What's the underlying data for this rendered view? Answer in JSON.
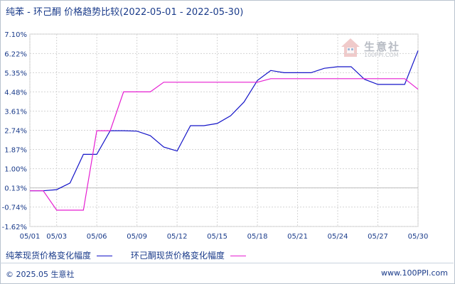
{
  "title": "纯苯 - 环己酮 价格趋势比较(2022-05-01 - 2022-05-30)",
  "footer": {
    "copyright": "© 2025.05 生意社",
    "url": "www.100PPI.com"
  },
  "logo": {
    "text": "生意社",
    "url": "100PPI.COM"
  },
  "colors": {
    "series1": "#1414c8",
    "series2": "#e61fd2",
    "grid": "#d4d4d4",
    "text": "#1a3b8a"
  },
  "chart_data": {
    "type": "line",
    "title": "纯苯 - 环己酮 价格趋势比较(2022-05-01 - 2022-05-30)",
    "x": [
      "05/01",
      "05/02",
      "05/03",
      "05/04",
      "05/05",
      "05/06",
      "05/07",
      "05/08",
      "05/09",
      "05/10",
      "05/11",
      "05/12",
      "05/13",
      "05/14",
      "05/15",
      "05/16",
      "05/17",
      "05/18",
      "05/19",
      "05/20",
      "05/21",
      "05/22",
      "05/23",
      "05/24",
      "05/25",
      "05/26",
      "05/27",
      "05/28",
      "05/29",
      "05/30"
    ],
    "x_tick_labels": [
      "05/01",
      "05/03",
      "05/06",
      "05/09",
      "05/12",
      "05/15",
      "05/18",
      "05/21",
      "05/24",
      "05/27",
      "05/30"
    ],
    "y_tick_labels": [
      "7.10%",
      "6.22%",
      "5.35%",
      "4.48%",
      "3.61%",
      "2.74%",
      "1.87%",
      "1.00%",
      "0.13%",
      "-0.74%",
      "-1.62%"
    ],
    "ylim": [
      -1.62,
      7.1
    ],
    "grid": true,
    "legend_position": "bottom",
    "series": [
      {
        "name": "纯苯现货价格变化幅度",
        "values": [
          0,
          0,
          0.05,
          0.35,
          1.65,
          1.65,
          2.72,
          2.72,
          2.7,
          2.5,
          1.98,
          1.8,
          2.95,
          2.95,
          3.05,
          3.4,
          4.02,
          5.0,
          5.45,
          5.35,
          5.35,
          5.35,
          5.55,
          5.62,
          5.62,
          5.05,
          4.82,
          4.82,
          4.82,
          6.35
        ]
      },
      {
        "name": "环己酮现货价格变化幅度",
        "values": [
          0,
          0,
          -0.88,
          -0.88,
          -0.88,
          2.72,
          2.72,
          4.48,
          4.48,
          4.48,
          4.92,
          4.92,
          4.92,
          4.92,
          4.92,
          4.92,
          4.92,
          4.92,
          5.08,
          5.08,
          5.08,
          5.08,
          5.08,
          5.08,
          5.08,
          5.08,
          5.08,
          5.08,
          5.08,
          4.6
        ]
      }
    ]
  }
}
